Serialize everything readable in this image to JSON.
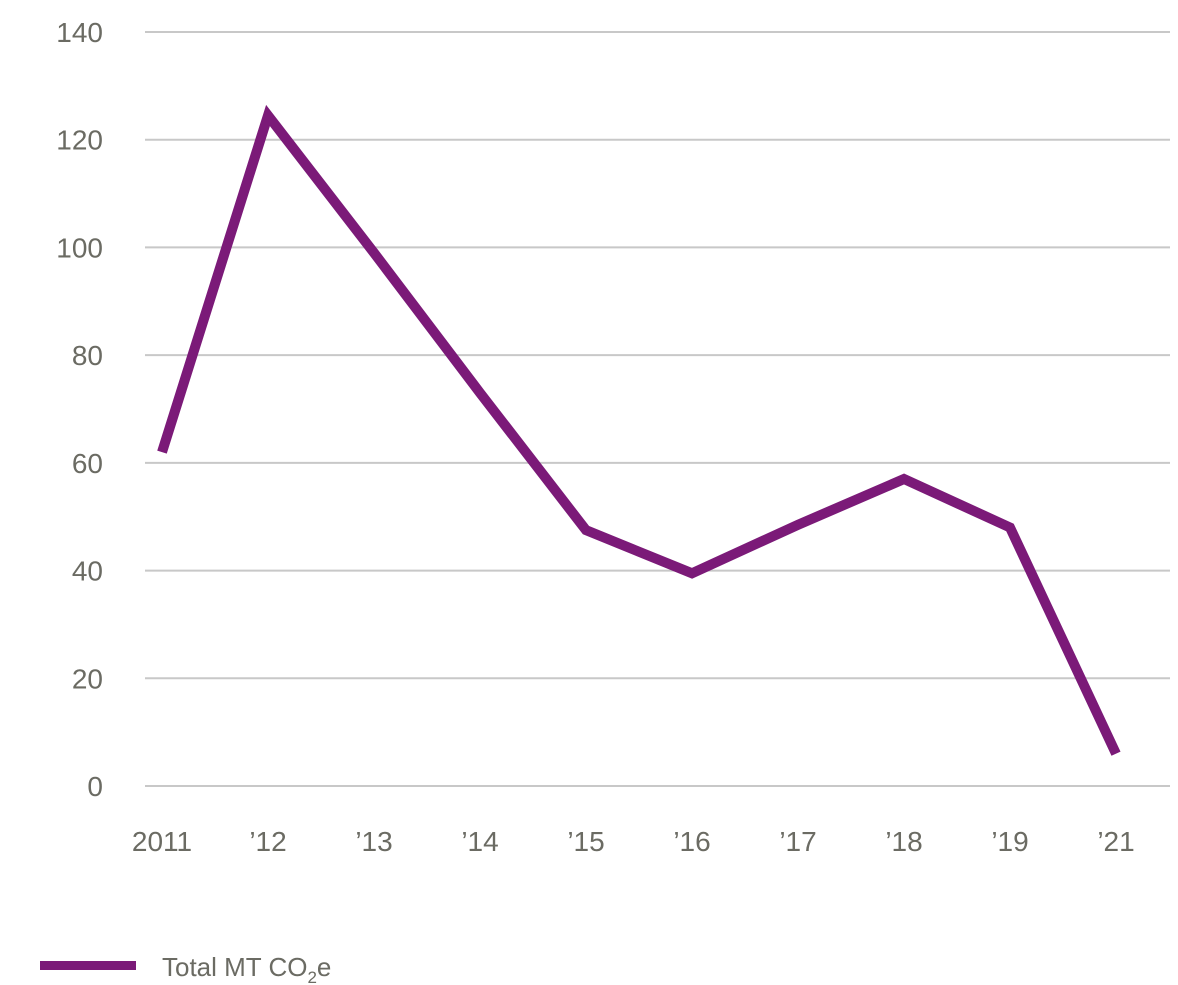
{
  "chart_data": {
    "type": "line",
    "categories": [
      "2011",
      "’12",
      "’13",
      "’14",
      "’15",
      "’16",
      "’17",
      "’18",
      "’19",
      "’21"
    ],
    "series": [
      {
        "name": "Total MT CO2e",
        "values": [
          62,
          124.5,
          99,
          73,
          47.5,
          39.5,
          48.5,
          57,
          48,
          6
        ]
      }
    ],
    "yticks": [
      0,
      20,
      40,
      60,
      80,
      100,
      120,
      140
    ],
    "ylim": [
      0,
      140
    ],
    "grid": true,
    "legend_position": "bottom-left",
    "colors": {
      "line": "#7b1a78",
      "grid": "#c8c8c8",
      "text": "#6b6b63"
    }
  },
  "legend": {
    "text": "Total MT CO",
    "sub": "2",
    "suffix": "e"
  }
}
